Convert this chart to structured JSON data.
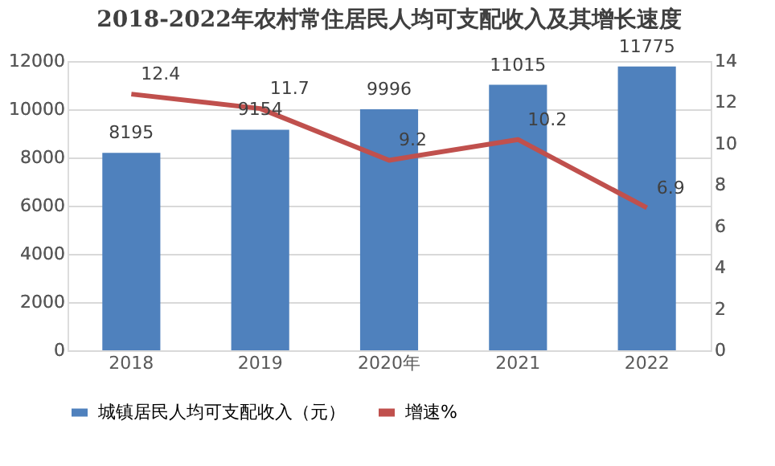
{
  "chart_data": {
    "type": "bar",
    "title": "2018-2022年农村常住居民人均可支配收入及其增长速度",
    "categories": [
      "2018",
      "2019",
      "2020年",
      "2021",
      "2022"
    ],
    "series": [
      {
        "name": "城镇居民人均可支配收入（元）",
        "color": "#4f81bd",
        "values": [
          8195,
          9154,
          9996,
          11015,
          11775
        ]
      },
      {
        "name": "增速%",
        "type": "line",
        "axis": "y2",
        "color": "#c0504d",
        "values": [
          12.4,
          11.7,
          9.2,
          10.2,
          6.9
        ]
      }
    ],
    "ylim": [
      0,
      12000
    ],
    "yticks": [
      0,
      2000,
      4000,
      6000,
      8000,
      10000,
      12000
    ],
    "y2lim": [
      0,
      14
    ],
    "y2ticks": [
      0,
      2,
      4,
      6,
      8,
      10,
      12,
      14
    ],
    "grid": "y",
    "legend": "bottom",
    "data_labels": true,
    "marker": "none",
    "line_style": "solid"
  }
}
